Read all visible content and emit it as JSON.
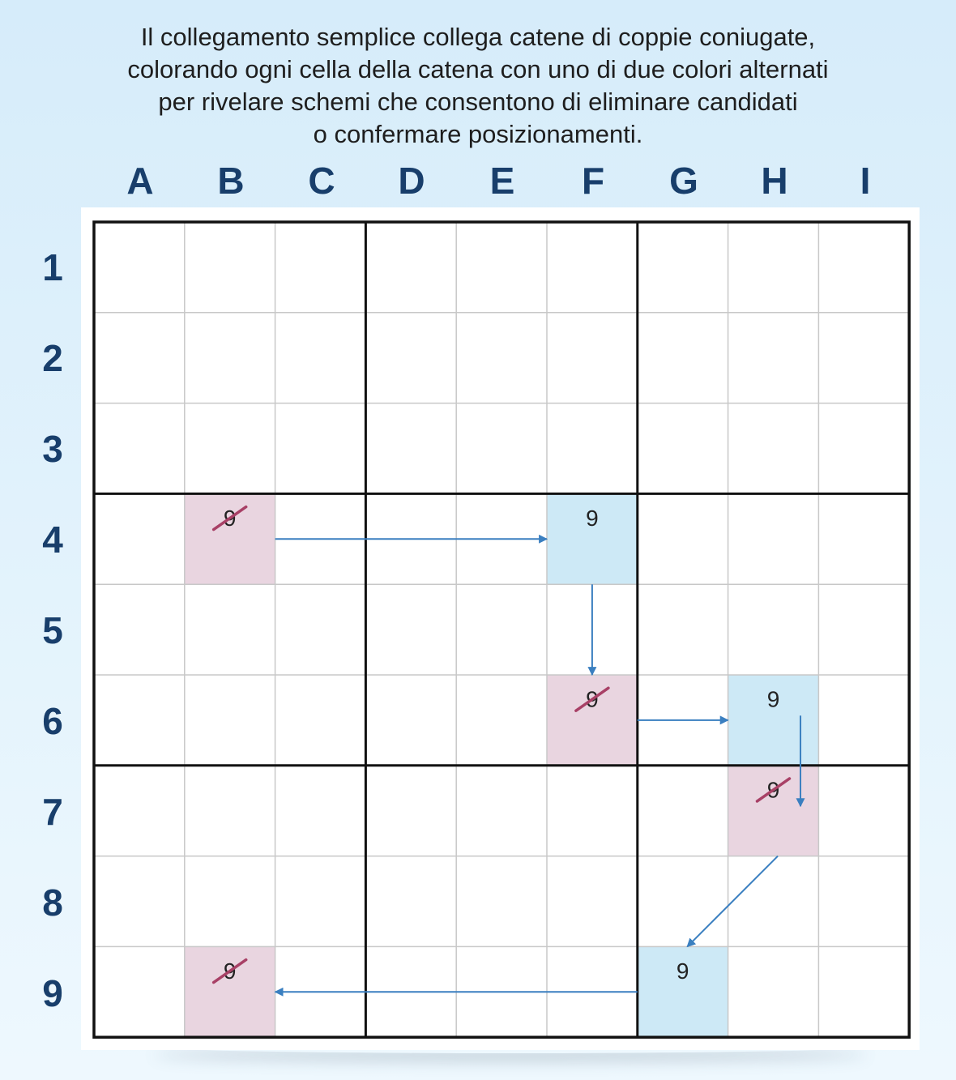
{
  "caption_lines": [
    "Il collegamento semplice collega catene di coppie coniugate,",
    "colorando ogni cella della catena con uno di due colori alternati",
    "per rivelare schemi che consentono di eliminare candidati",
    "o confermare posizionamenti."
  ],
  "columns": [
    "A",
    "B",
    "C",
    "D",
    "E",
    "F",
    "G",
    "H",
    "I"
  ],
  "rows": [
    "1",
    "2",
    "3",
    "4",
    "5",
    "6",
    "7",
    "8",
    "9"
  ],
  "colors": {
    "color_a": "#cde9f6",
    "color_b": "#e9d5e0",
    "strike": "#a84066",
    "arrow": "#3a7fc0",
    "grid_thin": "#c8c8c8",
    "grid_thick": "#111111"
  },
  "candidate": "9",
  "cells": [
    {
      "cell": "B4",
      "color": "color_b",
      "digit": "9",
      "eliminated": true
    },
    {
      "cell": "F4",
      "color": "color_a",
      "digit": "9",
      "eliminated": false
    },
    {
      "cell": "F6",
      "color": "color_b",
      "digit": "9",
      "eliminated": true
    },
    {
      "cell": "H6",
      "color": "color_a",
      "digit": "9",
      "eliminated": false
    },
    {
      "cell": "H7",
      "color": "color_b",
      "digit": "9",
      "eliminated": true
    },
    {
      "cell": "G9",
      "color": "color_a",
      "digit": "9",
      "eliminated": false
    },
    {
      "cell": "B9",
      "color": "color_b",
      "digit": "9",
      "eliminated": true
    }
  ],
  "chain_links": [
    {
      "from": "B4",
      "to": "F4"
    },
    {
      "from": "F4",
      "to": "F6"
    },
    {
      "from": "F6",
      "to": "H6"
    },
    {
      "from": "H6",
      "to": "H7"
    },
    {
      "from": "H7",
      "to": "G9"
    },
    {
      "from": "G9",
      "to": "B9"
    }
  ]
}
